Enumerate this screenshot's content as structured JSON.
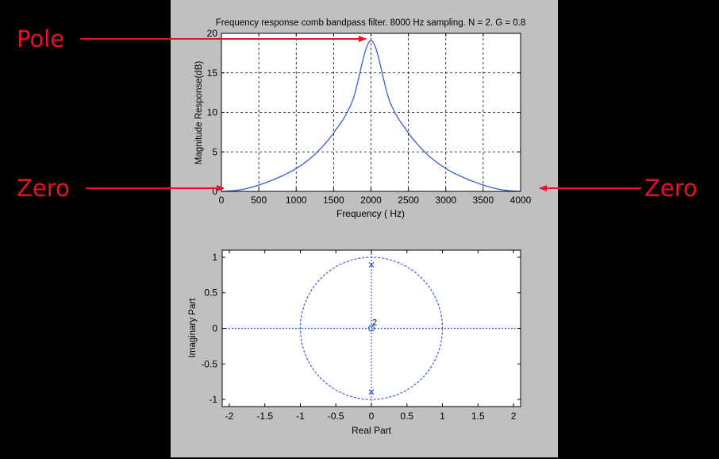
{
  "colors": {
    "background": "#000000",
    "figure_bg": "#c0c0c0",
    "plot_bg": "#ffffff",
    "series": "#3a5bd9",
    "grid": "#000000",
    "annotation": "#e8102a"
  },
  "annotations": {
    "pole": "Pole",
    "zero_left": "Zero",
    "zero_right": "Zero"
  },
  "chart_data": [
    {
      "type": "line",
      "title": "Frequency response comb bandpass filter. 8000 Hz sampling. N = 2. G = 0.8",
      "xlabel": "Frequency (  Hz)",
      "ylabel": "Magnitude Response(dB)",
      "xlim": [
        0,
        4000
      ],
      "ylim": [
        0,
        20
      ],
      "xticks": [
        0,
        500,
        1000,
        1500,
        2000,
        2500,
        3000,
        3500,
        4000
      ],
      "yticks": [
        0,
        5,
        10,
        15,
        20
      ],
      "grid": true,
      "series": [
        {
          "x": [
            0,
            250,
            500,
            750,
            1000,
            1250,
            1500,
            1750,
            2000,
            2250,
            2500,
            2750,
            3000,
            3250,
            3500,
            3750,
            4000
          ],
          "values": [
            0,
            0.2,
            0.8,
            1.7,
            2.9,
            4.7,
            7.4,
            11.4,
            19.1,
            11.4,
            7.4,
            4.7,
            2.9,
            1.7,
            0.8,
            0.2,
            0
          ]
        }
      ]
    },
    {
      "type": "scatter",
      "title": "",
      "xlabel": "Real Part",
      "ylabel": "Imaginary Part",
      "xlim": [
        -2.1,
        2.1
      ],
      "ylim": [
        -1.1,
        1.1
      ],
      "xticks": [
        -2,
        -1.5,
        -1,
        -0.5,
        0,
        0.5,
        1,
        1.5,
        2
      ],
      "yticks": [
        -1,
        -0.5,
        0,
        0.5,
        1
      ],
      "grid": false,
      "unit_circle": true,
      "poles": [
        [
          0,
          0.894
        ],
        [
          0,
          -0.894
        ]
      ],
      "zeros": [
        [
          0,
          0
        ]
      ],
      "zero_multiplicity": "2"
    }
  ]
}
